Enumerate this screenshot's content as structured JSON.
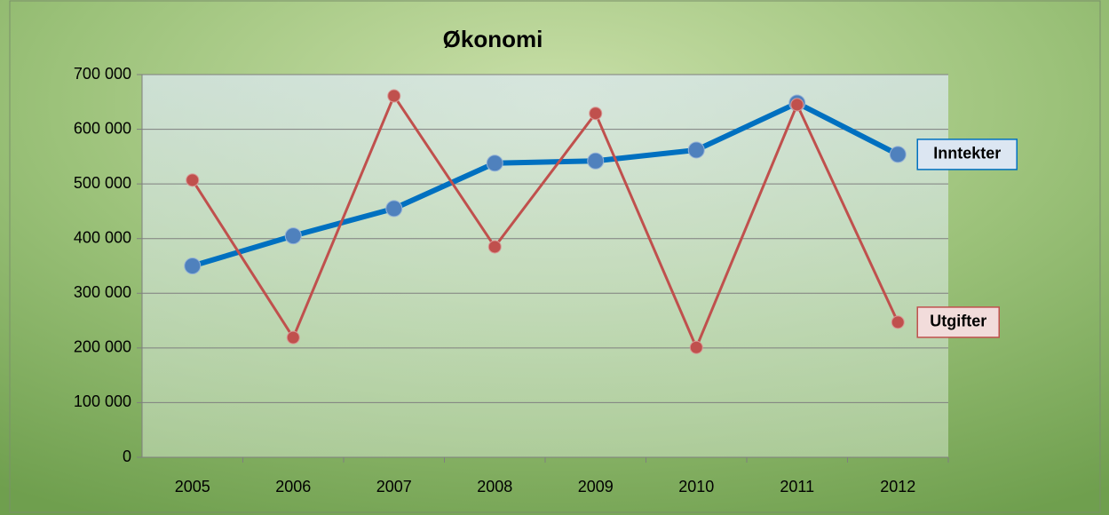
{
  "chart_data": {
    "type": "line",
    "title": "Økonomi",
    "categories": [
      "2005",
      "2006",
      "2007",
      "2008",
      "2009",
      "2010",
      "2011",
      "2012"
    ],
    "series": [
      {
        "name": "Inntekter",
        "color": "#0070c0",
        "values": [
          350000,
          405000,
          455000,
          538000,
          542000,
          562000,
          648000,
          554000
        ]
      },
      {
        "name": "Utgifter",
        "color": "#c0504d",
        "values": [
          507000,
          219000,
          661000,
          385000,
          629000,
          201000,
          645000,
          247000
        ]
      }
    ],
    "ylim": [
      0,
      700000
    ],
    "yticks": [
      {
        "value": 0,
        "label": "0"
      },
      {
        "value": 100000,
        "label": "100 000"
      },
      {
        "value": 200000,
        "label": "200 000"
      },
      {
        "value": 300000,
        "label": "300 000"
      },
      {
        "value": 400000,
        "label": "400 000"
      },
      {
        "value": 500000,
        "label": "500 000"
      },
      {
        "value": 600000,
        "label": "600 000"
      },
      {
        "value": 700000,
        "label": "700 000"
      }
    ],
    "grid": true
  }
}
